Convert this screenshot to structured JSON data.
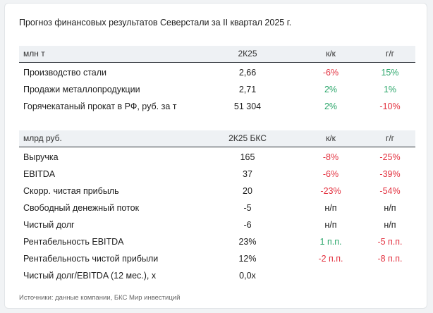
{
  "title": "Прогноз финансовых результатов Северстали за II квартал 2025 г.",
  "table1": {
    "header": {
      "label": "млн т",
      "col1": "2К25",
      "col2": "к/к",
      "col3": "г/г"
    },
    "rows": [
      {
        "label": "Производство стали",
        "value": "2,66",
        "qoq": "-6%",
        "yoy": "15%"
      },
      {
        "label": "Продажи металлопродукции",
        "value": "2,71",
        "qoq": "2%",
        "yoy": "1%"
      },
      {
        "label": "Горячекатаный прокат в РФ, руб. за т",
        "value": "51 304",
        "qoq": "2%",
        "yoy": "-10%"
      }
    ]
  },
  "table2": {
    "header": {
      "label": "млрд руб.",
      "col1": "2К25 БКС",
      "col2": "к/к",
      "col3": "г/г"
    },
    "rows": [
      {
        "label": "Выручка",
        "value": "165",
        "qoq": "-8%",
        "yoy": "-25%"
      },
      {
        "label": "EBITDA",
        "value": "37",
        "qoq": "-6%",
        "yoy": "-39%"
      },
      {
        "label": "Скорр. чистая прибыль",
        "value": "20",
        "qoq": "-23%",
        "yoy": "-54%"
      },
      {
        "label": "Свободный денежный поток",
        "value": "-5",
        "qoq": "н/п",
        "yoy": "н/п"
      },
      {
        "label": "Чистый долг",
        "value": "-6",
        "qoq": "н/п",
        "yoy": "н/п"
      },
      {
        "label": "Рентабельность EBITDA",
        "value": "23%",
        "qoq": "1 п.п.",
        "yoy": "-5 п.п."
      },
      {
        "label": "Рентабельность чистой прибыли",
        "value": "12%",
        "qoq": "-2 п.п.",
        "yoy": "-8 п.п."
      },
      {
        "label": "Чистый долг/EBITDA (12 мес.), x",
        "value": "0,0x",
        "qoq": "",
        "yoy": ""
      }
    ]
  },
  "source": "Источники: данные компании, БКС Мир инвестиций",
  "colors": {
    "negative": "#e3313f",
    "positive": "#2aa66a",
    "header_bg": "#eef1f4"
  }
}
